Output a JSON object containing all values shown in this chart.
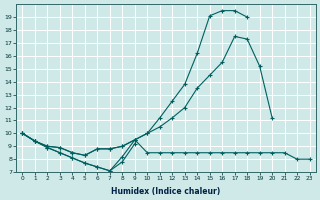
{
  "xlabel": "Humidex (Indice chaleur)",
  "ylabel": "",
  "bg_color": "#cfe8e8",
  "grid_color": "#b0d4d4",
  "line_color": "#006060",
  "x_values": [
    0,
    1,
    2,
    3,
    4,
    5,
    6,
    7,
    8,
    9,
    10,
    11,
    12,
    13,
    14,
    15,
    16,
    17,
    18,
    19,
    20,
    21,
    22,
    23
  ],
  "series_max": [
    10.0,
    9.4,
    9.0,
    8.9,
    8.5,
    8.3,
    8.8,
    8.8,
    9.0,
    9.5,
    10.0,
    11.2,
    12.5,
    13.8,
    16.2,
    19.1,
    19.5,
    19.5,
    19.0,
    null,
    null,
    null,
    null,
    null
  ],
  "series_avg": [
    10.0,
    9.4,
    9.0,
    8.9,
    8.5,
    8.3,
    8.8,
    8.8,
    9.0,
    9.5,
    10.0,
    10.5,
    11.2,
    12.0,
    13.5,
    14.5,
    15.5,
    17.5,
    17.3,
    15.2,
    11.2,
    null,
    null,
    null
  ],
  "series_min": [
    10.0,
    9.4,
    8.9,
    8.5,
    8.1,
    7.7,
    7.4,
    7.1,
    8.2,
    9.5,
    8.5,
    8.5,
    8.5,
    8.5,
    8.5,
    8.5,
    8.5,
    8.5,
    8.5,
    8.5,
    8.5,
    8.5,
    8.0,
    8.0
  ],
  "series_bot": [
    10.0,
    9.4,
    8.9,
    8.5,
    8.1,
    7.7,
    7.4,
    7.1,
    7.8,
    9.2,
    null,
    null,
    null,
    null,
    null,
    null,
    null,
    null,
    null,
    null,
    null,
    null,
    null,
    null
  ],
  "xlim": [
    -0.5,
    23.5
  ],
  "ylim": [
    7,
    20
  ],
  "yticks": [
    7,
    8,
    9,
    10,
    11,
    12,
    13,
    14,
    15,
    16,
    17,
    18,
    19
  ],
  "xticks": [
    0,
    1,
    2,
    3,
    4,
    5,
    6,
    7,
    8,
    9,
    10,
    11,
    12,
    13,
    14,
    15,
    16,
    17,
    18,
    19,
    20,
    21,
    22,
    23
  ]
}
